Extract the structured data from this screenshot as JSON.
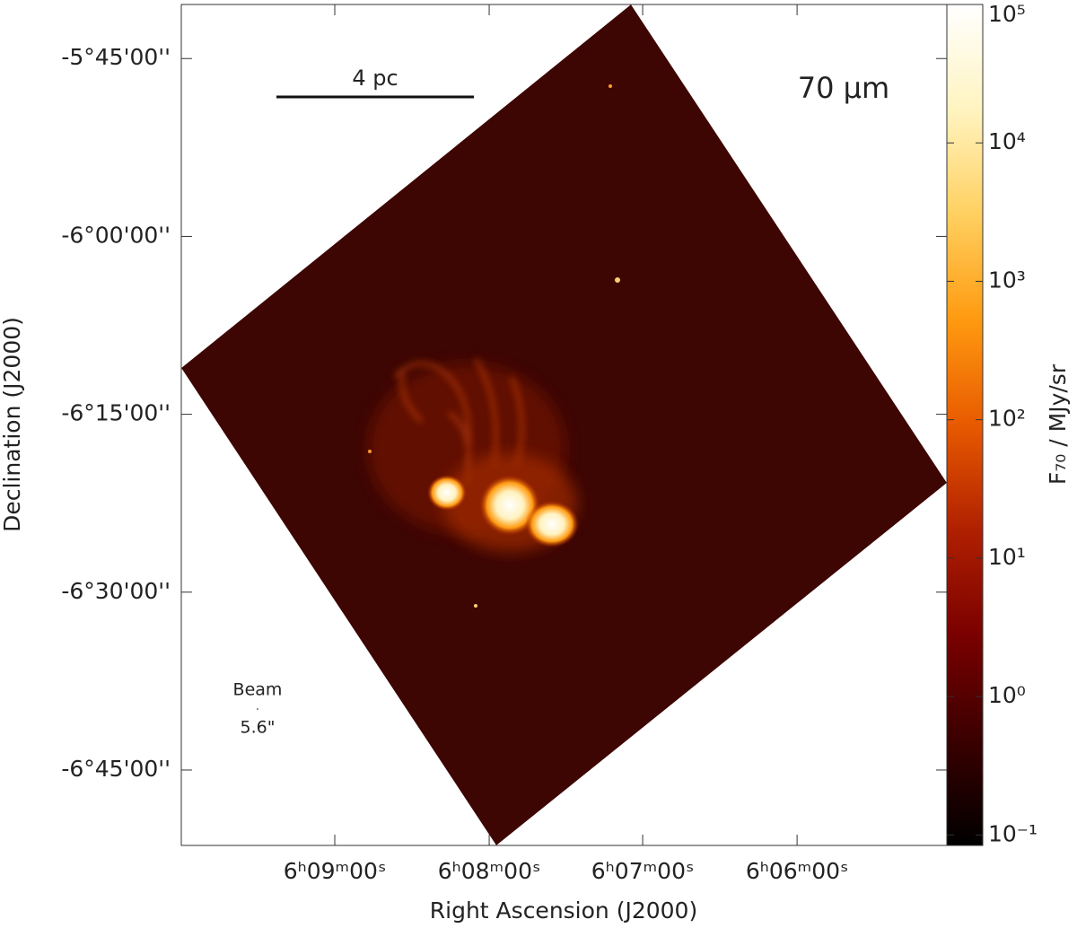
{
  "chart_data": {
    "type": "image",
    "xlabel": "Right Ascension (J2000)",
    "ylabel": "Declination (J2000)",
    "xlim": [
      6.1666,
      6.0838
    ],
    "ylim": [
      -6.856,
      -5.674
    ],
    "xticks": [
      {
        "value": 6.15,
        "label": "6ʰ09ᵐ00ˢ"
      },
      {
        "value": 6.1333,
        "label": "6ʰ08ᵐ00ˢ"
      },
      {
        "value": 6.1167,
        "label": "6ʰ07ᵐ00ˢ"
      },
      {
        "value": 6.1,
        "label": "6ʰ06ᵐ00ˢ"
      }
    ],
    "yticks": [
      {
        "value": -5.75,
        "label": "-5°45'00''"
      },
      {
        "value": -6.0,
        "label": "-6°00'00''"
      },
      {
        "value": -6.25,
        "label": "-6°15'00''"
      },
      {
        "value": -6.5,
        "label": "-6°30'00''"
      },
      {
        "value": -6.75,
        "label": "-6°45'00''"
      }
    ],
    "colorbar": {
      "label": "F₇₀ / MJy/sr",
      "scale": "log",
      "lim": [
        0.084,
        100000
      ],
      "ticks": [
        {
          "value": 0.1,
          "label": "10⁻¹"
        },
        {
          "value": 1,
          "label": "10⁰"
        },
        {
          "value": 10,
          "label": "10¹"
        },
        {
          "value": 100,
          "label": "10²"
        },
        {
          "value": 1000,
          "label": "10³"
        },
        {
          "value": 10000,
          "label": "10⁴"
        },
        {
          "value": 100000,
          "label": "10⁵"
        }
      ],
      "colormap": [
        "#000000",
        "#3a0000",
        "#7a0000",
        "#b02000",
        "#e85a00",
        "#ff9a10",
        "#ffd060",
        "#fff4c0",
        "#ffffff"
      ]
    },
    "annotations": {
      "band": "70 µm",
      "scale_bar": "4 pc",
      "beam": "Beam",
      "beam_size": "5.6\""
    }
  }
}
